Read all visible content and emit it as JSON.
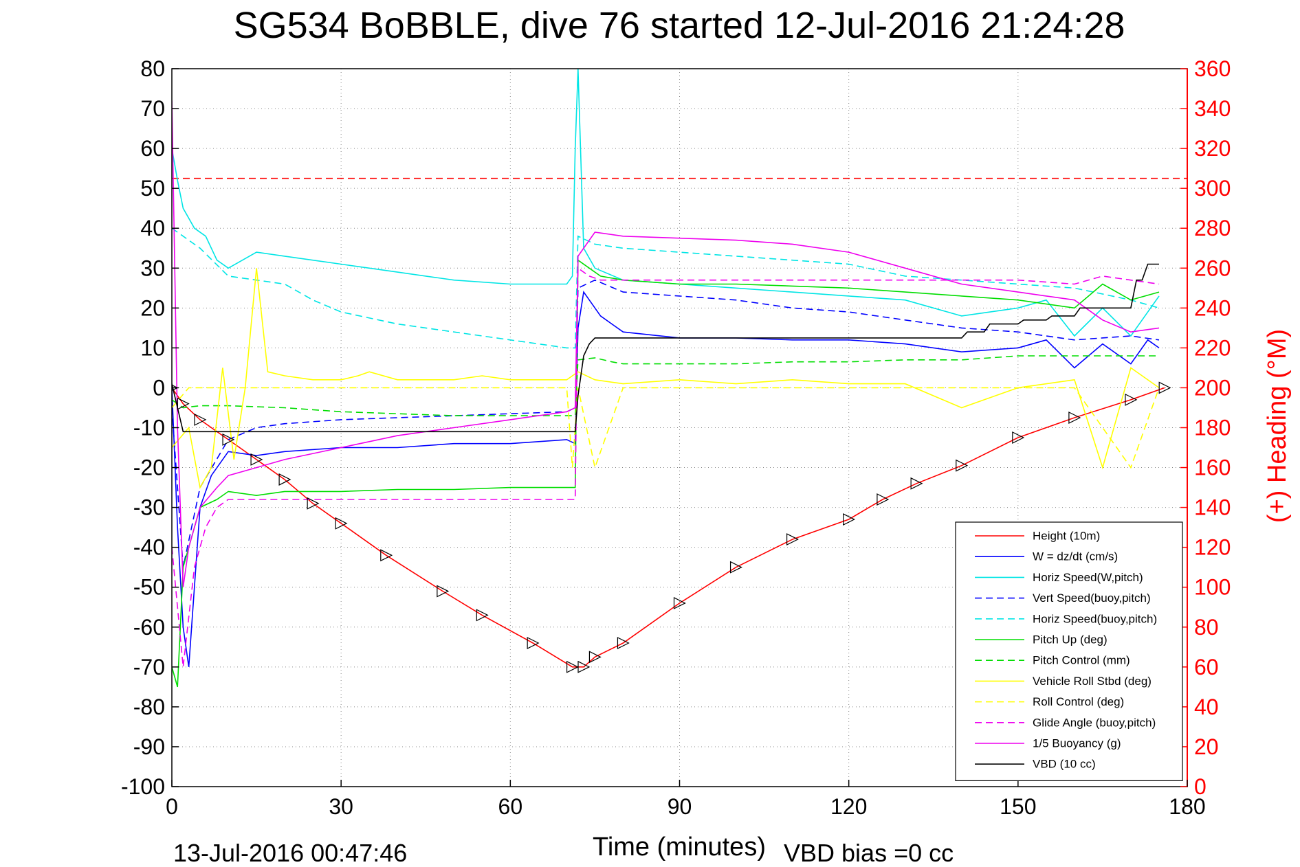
{
  "chart_data": {
    "type": "line",
    "title": "SG534 BoBBLE, dive 76 started 12-Jul-2016 21:24:28",
    "xlabel": "Time (minutes)",
    "ylabel_right": "(+) Heading (°M)",
    "footer_left": "13-Jul-2016 00:47:46",
    "footer_right": "VBD bias =0 cc",
    "xlim": [
      0,
      180
    ],
    "ylim_left": [
      -100,
      80
    ],
    "ylim_right": [
      0,
      360
    ],
    "x_ticks": [
      0,
      30,
      60,
      90,
      120,
      150,
      180
    ],
    "y_left_ticks": [
      80,
      70,
      60,
      50,
      40,
      30,
      20,
      10,
      0,
      -10,
      -20,
      -30,
      -40,
      -50,
      -60,
      -70,
      -80,
      -90,
      -100
    ],
    "y_right_ticks": [
      360,
      340,
      320,
      300,
      280,
      260,
      240,
      220,
      200,
      180,
      160,
      140,
      120,
      100,
      80,
      60,
      40,
      20,
      0
    ],
    "grid": true,
    "legend_position": "bottom-right",
    "heading_reference": 305,
    "colors": {
      "heading": "#ff0000",
      "axis_left": "#000000",
      "axis_right": "#ff0000"
    },
    "series": [
      {
        "name": "Height (10m)",
        "color": "#ff0000",
        "dash": "solid",
        "x": [
          0,
          2,
          5,
          10,
          15,
          20,
          25,
          30,
          38,
          48,
          55,
          64,
          71,
          73,
          75,
          80,
          90,
          100,
          110,
          120,
          126,
          132,
          140,
          150,
          160,
          170,
          176
        ],
        "y": [
          0,
          -4,
          -8,
          -13,
          -18,
          -23,
          -29,
          -34,
          -42,
          -51,
          -57,
          -64,
          -70,
          -70,
          -67.5,
          -64,
          -54,
          -45,
          -38,
          -33,
          -28,
          -24,
          -19.5,
          -12.5,
          -7.5,
          -3,
          0
        ]
      },
      {
        "name": "W = dz/dt (cm/s)",
        "color": "#0000ff",
        "dash": "solid",
        "x": [
          0,
          1,
          2,
          3,
          4,
          5,
          7,
          10,
          15,
          20,
          30,
          40,
          50,
          60,
          70,
          71.5,
          72,
          73,
          74,
          76,
          78,
          80,
          90,
          100,
          110,
          120,
          130,
          140,
          150,
          155,
          160,
          165,
          170,
          173,
          175
        ],
        "y": [
          0,
          -35,
          -60,
          -70,
          -50,
          -30,
          -22,
          -16,
          -17,
          -16,
          -15,
          -15,
          -14,
          -14,
          -13,
          -14,
          15,
          24,
          22,
          18,
          16,
          14,
          12.5,
          12.5,
          12,
          12,
          11,
          9,
          10,
          12,
          5,
          11,
          6,
          12,
          10
        ]
      },
      {
        "name": "Horiz Speed(W,pitch)",
        "color": "#00e5e5",
        "dash": "solid",
        "x": [
          0,
          1,
          2,
          4,
          6,
          8,
          10,
          15,
          20,
          30,
          40,
          50,
          60,
          70,
          71,
          71.5,
          72,
          73,
          75,
          80,
          90,
          100,
          110,
          120,
          130,
          140,
          150,
          155,
          160,
          165,
          170,
          175
        ],
        "y": [
          60,
          52,
          45,
          40,
          38,
          32,
          30,
          34,
          33,
          31,
          29,
          27,
          26,
          26,
          28,
          60,
          80,
          35,
          30,
          27,
          26,
          25,
          24,
          23,
          22,
          18,
          20,
          22,
          13,
          20,
          13,
          23
        ]
      },
      {
        "name": "Vert Speed(buoy,pitch)",
        "color": "#0000ff",
        "dash": "dash",
        "x": [
          0,
          2,
          5,
          10,
          15,
          20,
          30,
          40,
          50,
          60,
          70,
          71.5,
          72,
          75,
          80,
          90,
          100,
          110,
          120,
          130,
          140,
          150,
          160,
          170,
          175
        ],
        "y": [
          -5,
          -45,
          -25,
          -13,
          -10,
          -9,
          -8,
          -7.5,
          -7,
          -6.5,
          -6,
          -5,
          25,
          27,
          24,
          23,
          22,
          20,
          19,
          17,
          15,
          14,
          12,
          13,
          12
        ]
      },
      {
        "name": "Horiz Speed(buoy,pitch)",
        "color": "#00e5e5",
        "dash": "dash",
        "x": [
          0,
          5,
          10,
          15,
          20,
          25,
          30,
          40,
          50,
          60,
          70,
          71.5,
          72,
          75,
          80,
          90,
          100,
          110,
          120,
          130,
          140,
          150,
          160,
          170,
          175
        ],
        "y": [
          40,
          35,
          28,
          27,
          26,
          22,
          19,
          16,
          14,
          12,
          10,
          10,
          38,
          36,
          35,
          34,
          33,
          32,
          31,
          28,
          27,
          26,
          25,
          22,
          20
        ]
      },
      {
        "name": "Pitch Up (deg)",
        "color": "#00dd00",
        "dash": "solid",
        "x": [
          0,
          1,
          2,
          3,
          5,
          8,
          10,
          15,
          20,
          30,
          40,
          50,
          60,
          70,
          71.5,
          72,
          74,
          76,
          80,
          90,
          100,
          110,
          120,
          130,
          140,
          150,
          160,
          165,
          170,
          175
        ],
        "y": [
          -70,
          -75,
          -45,
          -40,
          -30,
          -28,
          -26,
          -27,
          -26,
          -26,
          -25.5,
          -25.5,
          -25,
          -25,
          -25,
          32,
          30,
          28,
          27,
          26,
          26,
          25.5,
          25,
          24,
          23,
          22,
          20,
          26,
          22,
          24
        ]
      },
      {
        "name": "Pitch Control (mm)",
        "color": "#00dd00",
        "dash": "dash",
        "x": [
          0,
          2,
          5,
          10,
          20,
          30,
          40,
          50,
          60,
          70,
          71.5,
          72,
          75,
          78,
          80,
          90,
          100,
          110,
          120,
          130,
          140,
          150,
          160,
          170,
          175
        ],
        "y": [
          -3,
          -5,
          -4.5,
          -4.5,
          -5,
          -6,
          -6.5,
          -7,
          -7,
          -7,
          -7,
          7,
          7.5,
          6.5,
          6,
          6,
          6,
          6.5,
          6.5,
          7,
          7,
          8,
          8,
          8,
          8
        ]
      },
      {
        "name": "Vehicle Roll Stbd (deg)",
        "color": "#ffff00",
        "dash": "solid",
        "x": [
          0,
          3,
          5,
          7,
          9,
          11,
          13,
          15,
          17,
          20,
          25,
          30,
          33,
          35,
          40,
          45,
          50,
          55,
          60,
          65,
          70,
          71,
          72,
          75,
          80,
          90,
          100,
          110,
          120,
          130,
          140,
          150,
          160,
          165,
          170,
          175
        ],
        "y": [
          -15,
          -10,
          -25,
          -20,
          5,
          -18,
          0,
          30,
          4,
          3,
          2,
          2,
          3,
          4,
          2,
          2,
          2,
          3,
          2,
          2,
          2,
          3,
          4,
          2,
          1,
          2,
          1,
          2,
          1,
          1,
          -5,
          0,
          2,
          -20,
          5,
          0
        ]
      },
      {
        "name": "Roll Control (deg)",
        "color": "#ffff00",
        "dash": "dash",
        "x": [
          0,
          3,
          5,
          8,
          10,
          15,
          20,
          25,
          30,
          40,
          50,
          60,
          70,
          71,
          72,
          75,
          80,
          90,
          100,
          110,
          120,
          130,
          140,
          150,
          160,
          170,
          175
        ],
        "y": [
          -5,
          0,
          0,
          0,
          0,
          0,
          0,
          0,
          0,
          0,
          0,
          0,
          0,
          -20,
          0,
          -20,
          0,
          0,
          0,
          0,
          0,
          0,
          0,
          0,
          0,
          -20,
          0
        ]
      },
      {
        "name": "Glide Angle (buoy,pitch)",
        "color": "#ee00ee",
        "dash": "dash",
        "x": [
          0,
          2,
          4,
          6,
          8,
          10,
          15,
          20,
          30,
          40,
          50,
          60,
          70,
          71.5,
          72,
          74,
          76,
          80,
          90,
          100,
          110,
          120,
          130,
          140,
          150,
          160,
          165,
          170,
          175
        ],
        "y": [
          -40,
          -70,
          -45,
          -35,
          -30,
          -28,
          -28,
          -28,
          -28,
          -28,
          -28,
          -28,
          -28,
          -28,
          30,
          28,
          27,
          27,
          27,
          27,
          27,
          27,
          27,
          27,
          27,
          26,
          28,
          27,
          26
        ]
      },
      {
        "name": "1/5 Buoyancy (g)",
        "color": "#ee00ee",
        "dash": "solid",
        "x": [
          0,
          1,
          2,
          3,
          5,
          8,
          10,
          15,
          20,
          30,
          40,
          50,
          60,
          70,
          71.5,
          72,
          75,
          80,
          90,
          100,
          110,
          120,
          130,
          140,
          150,
          155,
          160,
          165,
          170,
          175
        ],
        "y": [
          72,
          -10,
          -50,
          -40,
          -30,
          -25,
          -22,
          -20,
          -18,
          -15,
          -12,
          -10,
          -8,
          -6,
          -5,
          33,
          39,
          38,
          37.5,
          37,
          36,
          34,
          30,
          26,
          24,
          23,
          22,
          17,
          14,
          15
        ]
      },
      {
        "name": "VBD (10 cc)",
        "color": "#000000",
        "dash": "solid",
        "x": [
          0,
          1,
          2,
          3,
          10,
          30,
          50,
          70,
          71.5,
          72,
          73,
          74,
          75,
          90,
          105,
          120,
          135,
          140,
          141,
          144,
          145,
          150,
          151,
          155,
          156,
          160,
          161,
          170,
          171,
          172,
          173,
          175
        ],
        "y": [
          1,
          -5,
          -11,
          -11,
          -11,
          -11,
          -11,
          -11,
          -11,
          -2,
          8,
          11,
          12.5,
          12.5,
          12.5,
          12.5,
          12.5,
          12.5,
          14,
          14,
          16,
          16,
          17,
          17,
          18,
          18,
          20,
          20,
          27,
          27,
          31,
          31
        ]
      }
    ]
  }
}
